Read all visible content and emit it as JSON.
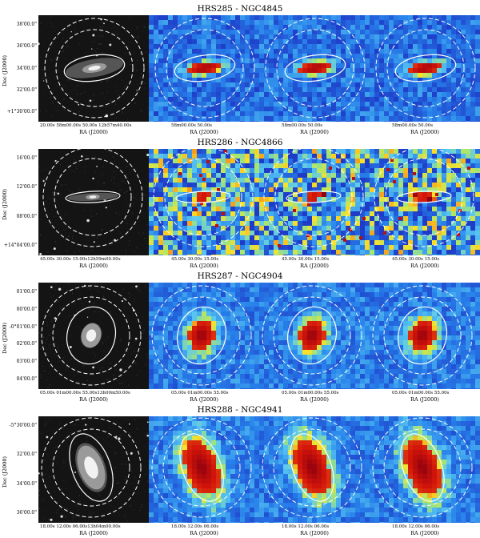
{
  "figure": {
    "rows": [
      {
        "title": "HRS285 - NGC4845",
        "ylabel": "Dec (J2000)",
        "yticks": [
          "38'00.0\"",
          "36'00.0\"",
          "34'00.0\"",
          "32'00.0\"",
          "+1°30'00.0\""
        ],
        "xlabel": "RA (J2000)",
        "xticks": [
          "20.00s          58m00.00s     50.00s   12h57m40.00s",
          "58m00.00s     50.00s",
          "58m00.00s     50.00s",
          "58m00.00s     50.00s"
        ],
        "shape": "edge-on-large"
      },
      {
        "title": "HRS286 - NGC4866",
        "ylabel": "Dec (J2000)",
        "yticks": [
          "16'00.0\"",
          "12'00.0\"",
          "08'00.0\"",
          "+14°04'00.0\""
        ],
        "xlabel": "RA (J2000)",
        "xticks": [
          "45.00s    30.00s    15.00s12h59m00.00s",
          "45.00s    30.00s    15.00s",
          "45.00s    30.00s    15.00s",
          "45.00s    30.00s    15.00s"
        ],
        "shape": "edge-on-thin"
      },
      {
        "title": "HRS287 - NGC4904",
        "ylabel": "Dec (J2000)",
        "yticks": [
          "01'00.0\"",
          "00'00.0\"",
          "-0°01'00.0\"",
          "02'00.0\"",
          "03'00.0\"",
          "04'00.0\""
        ],
        "xlabel": "RA (J2000)",
        "xticks": [
          "05.00s  01m00.00s  55.00s13h00m50.00s",
          "05.00s  01m00.00s  55.00s",
          "05.00s  01m00.00s  55.00s",
          "05.00s  01m00.00s  55.00s"
        ],
        "shape": "compact"
      },
      {
        "title": "HRS288 - NGC4941",
        "ylabel": "Dec (J2000)",
        "yticks": [
          "-5°30'00.0\"",
          "32'00.0\"",
          "34'00.0\"",
          "36'00.0\""
        ],
        "xlabel": "RA (J2000)",
        "xticks": [
          "18.00s    12.00s   06.00s13h04m00.00s",
          "18.00s    12.00s   06.00s",
          "18.00s    12.00s   06.00s",
          "18.00s    12.00s   06.00s"
        ],
        "shape": "inclined"
      }
    ],
    "colors": {
      "map_background": "#2a6fd6",
      "map_core": "#a00010",
      "optical_background": "#141414",
      "aperture": "#ffffff"
    }
  }
}
